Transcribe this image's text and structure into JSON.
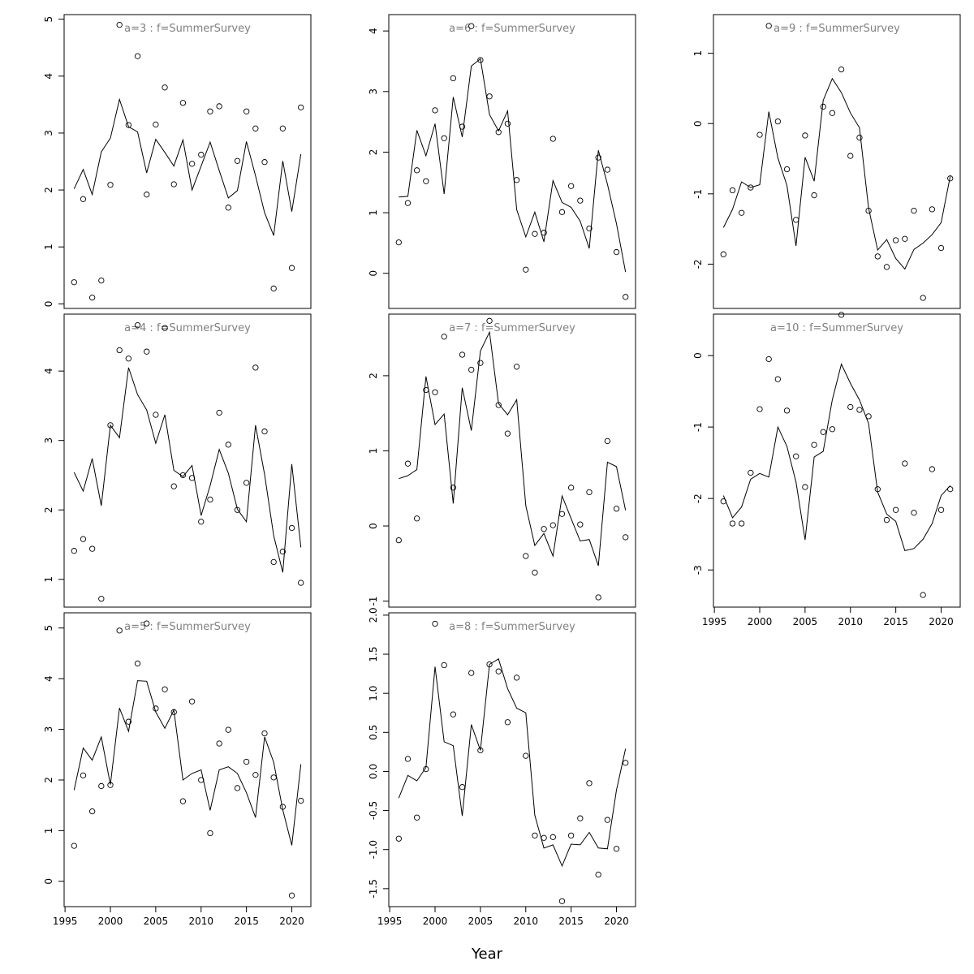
{
  "xlabel": "Year",
  "chart_data": [
    {
      "type": "line+scatter",
      "title": "a=3 : f=SummerSurvey",
      "x": [
        1996,
        1997,
        1998,
        1999,
        2000,
        2001,
        2002,
        2003,
        2004,
        2005,
        2006,
        2007,
        2008,
        2009,
        2010,
        2011,
        2012,
        2013,
        2014,
        2015,
        2016,
        2017,
        2018,
        2019,
        2020,
        2021
      ],
      "ylim": [
        -0.08,
        5.08
      ],
      "yticks": [
        0,
        1,
        2,
        3,
        4,
        5
      ],
      "xticks": [],
      "points": [
        0.38,
        1.84,
        0.11,
        0.41,
        2.09,
        4.9,
        3.14,
        4.35,
        1.92,
        3.15,
        3.8,
        2.1,
        3.53,
        2.46,
        2.62,
        3.38,
        3.47,
        1.69,
        2.51,
        3.38,
        3.08,
        2.49,
        0.27,
        3.08,
        0.63,
        3.45
      ],
      "line": [
        2.02,
        2.36,
        1.92,
        2.67,
        2.91,
        3.59,
        3.11,
        3.02,
        2.3,
        2.89,
        2.66,
        2.42,
        2.88,
        2.0,
        2.42,
        2.84,
        2.34,
        1.86,
        1.99,
        2.85,
        2.25,
        1.6,
        1.2,
        2.51,
        1.62,
        2.63
      ]
    },
    {
      "type": "line+scatter",
      "title": "a=4 : f=SummerSurvey",
      "x": [
        1996,
        1997,
        1998,
        1999,
        2000,
        2001,
        2002,
        2003,
        2004,
        2005,
        2006,
        2007,
        2008,
        2009,
        2010,
        2011,
        2012,
        2013,
        2014,
        2015,
        2016,
        2017,
        2018,
        2019,
        2020,
        2021
      ],
      "ylim": [
        0.6,
        4.82
      ],
      "yticks": [
        1,
        2,
        3,
        4
      ],
      "xticks": [],
      "points": [
        1.41,
        1.58,
        1.44,
        0.72,
        3.22,
        4.3,
        4.18,
        4.66,
        4.28,
        3.37,
        4.62,
        2.34,
        2.5,
        2.46,
        1.83,
        2.15,
        3.4,
        2.94,
        2.0,
        2.39,
        4.05,
        3.13,
        1.25,
        1.4,
        1.74,
        0.95
      ],
      "line": [
        2.54,
        2.27,
        2.74,
        2.06,
        3.22,
        3.04,
        4.05,
        3.66,
        3.44,
        2.96,
        3.37,
        2.57,
        2.48,
        2.64,
        1.92,
        2.35,
        2.87,
        2.53,
        2.01,
        1.83,
        3.22,
        2.51,
        1.63,
        1.1,
        2.66,
        1.46
      ]
    },
    {
      "type": "line+scatter",
      "title": "a=5 : f=SummerSurvey",
      "x": [
        1996,
        1997,
        1998,
        1999,
        2000,
        2001,
        2002,
        2003,
        2004,
        2005,
        2006,
        2007,
        2008,
        2009,
        2010,
        2011,
        2012,
        2013,
        2014,
        2015,
        2016,
        2017,
        2018,
        2019,
        2020,
        2021
      ],
      "ylim": [
        -0.5,
        5.3
      ],
      "yticks": [
        0,
        1,
        2,
        3,
        4,
        5
      ],
      "xticks": [
        1995,
        2000,
        2005,
        2010,
        2015,
        2020
      ],
      "points": [
        0.7,
        2.09,
        1.38,
        1.88,
        1.9,
        4.95,
        3.15,
        4.3,
        5.09,
        3.41,
        3.79,
        3.34,
        1.58,
        3.55,
        2.0,
        0.95,
        2.72,
        2.99,
        1.84,
        2.36,
        2.1,
        2.92,
        2.05,
        1.47,
        -0.28,
        1.59
      ],
      "line": [
        1.8,
        2.63,
        2.39,
        2.85,
        1.91,
        3.42,
        2.96,
        3.96,
        3.95,
        3.34,
        3.02,
        3.38,
        2.0,
        2.13,
        2.2,
        1.4,
        2.2,
        2.26,
        2.13,
        1.75,
        1.26,
        2.85,
        2.35,
        1.41,
        0.71,
        2.31
      ]
    },
    {
      "type": "line+scatter",
      "title": "a=6 : f=SummerSurvey",
      "x": [
        1996,
        1997,
        1998,
        1999,
        2000,
        2001,
        2002,
        2003,
        2004,
        2005,
        2006,
        2007,
        2008,
        2009,
        2010,
        2011,
        2012,
        2013,
        2014,
        2015,
        2016,
        2017,
        2018,
        2019,
        2020,
        2021
      ],
      "ylim": [
        -0.58,
        4.27
      ],
      "yticks": [
        0,
        1,
        2,
        3,
        4
      ],
      "xticks": [],
      "points": [
        0.51,
        1.16,
        1.7,
        1.52,
        2.69,
        2.23,
        3.22,
        2.42,
        4.08,
        3.52,
        2.92,
        2.33,
        2.47,
        1.54,
        0.06,
        0.65,
        0.67,
        2.22,
        1.01,
        1.44,
        1.2,
        0.74,
        1.91,
        1.71,
        0.35,
        -0.39
      ],
      "line": [
        1.26,
        1.27,
        2.36,
        1.94,
        2.47,
        1.31,
        2.91,
        2.25,
        3.42,
        3.54,
        2.62,
        2.35,
        2.68,
        1.05,
        0.6,
        1.01,
        0.52,
        1.53,
        1.17,
        1.09,
        0.86,
        0.41,
        2.03,
        1.47,
        0.82,
        0.02
      ]
    },
    {
      "type": "line+scatter",
      "title": "a=7 : f=SummerSurvey",
      "x": [
        1996,
        1997,
        1998,
        1999,
        2000,
        2001,
        2002,
        2003,
        2004,
        2005,
        2006,
        2007,
        2008,
        2009,
        2010,
        2011,
        2012,
        2013,
        2014,
        2015,
        2016,
        2017,
        2018,
        2019,
        2020,
        2021
      ],
      "ylim": [
        -1.08,
        2.82
      ],
      "yticks": [
        -1,
        0,
        1,
        2
      ],
      "xticks": [],
      "points": [
        -0.19,
        0.83,
        0.1,
        1.81,
        1.78,
        2.52,
        0.51,
        2.28,
        2.08,
        2.17,
        2.73,
        1.61,
        1.23,
        2.12,
        -0.4,
        -0.62,
        -0.04,
        0.01,
        0.16,
        0.51,
        0.02,
        0.45,
        -0.95,
        1.13,
        0.23,
        -0.15
      ],
      "line": [
        0.63,
        0.67,
        0.75,
        1.99,
        1.35,
        1.49,
        0.3,
        1.84,
        1.27,
        2.33,
        2.58,
        1.63,
        1.48,
        1.68,
        0.27,
        -0.26,
        -0.1,
        -0.4,
        0.4,
        0.1,
        -0.2,
        -0.18,
        -0.53,
        0.85,
        0.79,
        0.21
      ]
    },
    {
      "type": "line+scatter",
      "title": "a=8 : f=SummerSurvey",
      "x": [
        1996,
        1997,
        1998,
        1999,
        2000,
        2001,
        2002,
        2003,
        2004,
        2005,
        2006,
        2007,
        2008,
        2009,
        2010,
        2011,
        2012,
        2013,
        2014,
        2015,
        2016,
        2017,
        2018,
        2019,
        2020,
        2021
      ],
      "ylim": [
        -1.73,
        2.03
      ],
      "yticks": [
        -1.5,
        -1.0,
        -0.5,
        0.0,
        0.5,
        1.0,
        1.5,
        2.0
      ],
      "ytick_labels": [
        "-1.5",
        "-1.0",
        "-0.5",
        "0.0",
        "0.5",
        "1.0",
        "1.5",
        "2.0"
      ],
      "xticks": [
        1995,
        2000,
        2005,
        2010,
        2015,
        2020
      ],
      "points": [
        -0.86,
        0.16,
        -0.59,
        0.03,
        1.89,
        1.36,
        0.73,
        -0.2,
        1.26,
        0.27,
        1.37,
        1.28,
        0.63,
        1.2,
        0.2,
        -0.82,
        -0.85,
        -0.84,
        -1.66,
        -0.82,
        -0.6,
        -0.15,
        -1.32,
        -0.62,
        -0.99,
        0.11
      ],
      "line": [
        -0.34,
        -0.05,
        -0.12,
        0.05,
        1.34,
        0.38,
        0.33,
        -0.57,
        0.6,
        0.27,
        1.37,
        1.44,
        1.06,
        0.81,
        0.75,
        -0.56,
        -0.98,
        -0.94,
        -1.21,
        -0.93,
        -0.94,
        -0.78,
        -0.98,
        -0.99,
        -0.24,
        0.29
      ]
    },
    {
      "type": "line+scatter",
      "title": "a=9 : f=SummerSurvey",
      "x": [
        1996,
        1997,
        1998,
        1999,
        2000,
        2001,
        2002,
        2003,
        2004,
        2005,
        2006,
        2007,
        2008,
        2009,
        2010,
        2011,
        2012,
        2013,
        2014,
        2015,
        2016,
        2017,
        2018,
        2019,
        2020,
        2021
      ],
      "ylim": [
        -2.63,
        1.55
      ],
      "yticks": [
        -2,
        -1,
        0,
        1
      ],
      "xticks": [],
      "points": [
        -1.86,
        -0.95,
        -1.27,
        -0.91,
        -0.16,
        1.39,
        0.03,
        -0.65,
        -1.37,
        -0.17,
        -1.02,
        0.24,
        0.15,
        0.77,
        -0.46,
        -0.2,
        -1.24,
        -1.89,
        -2.04,
        -1.66,
        -1.64,
        -1.24,
        -2.48,
        -1.22,
        -1.77,
        -0.78
      ],
      "line": [
        -1.48,
        -1.22,
        -0.83,
        -0.91,
        -0.87,
        0.17,
        -0.49,
        -0.88,
        -1.74,
        -0.48,
        -0.82,
        0.33,
        0.64,
        0.44,
        0.15,
        -0.06,
        -1.2,
        -1.8,
        -1.65,
        -1.92,
        -2.07,
        -1.79,
        -1.7,
        -1.58,
        -1.41,
        -0.75
      ]
    },
    {
      "type": "line+scatter",
      "title": "a=10 : f=SummerSurvey",
      "x": [
        1996,
        1997,
        1998,
        1999,
        2000,
        2001,
        2002,
        2003,
        2004,
        2005,
        2006,
        2007,
        2008,
        2009,
        2010,
        2011,
        2012,
        2013,
        2014,
        2015,
        2016,
        2017,
        2018,
        2019,
        2020,
        2021
      ],
      "ylim": [
        -3.52,
        0.58
      ],
      "yticks": [
        -3,
        -2,
        -1,
        0
      ],
      "xticks": [
        1995,
        2000,
        2005,
        2010,
        2015,
        2020
      ],
      "points": [
        -2.04,
        -2.35,
        -2.35,
        -1.64,
        -0.75,
        -0.05,
        -0.33,
        -0.77,
        -1.41,
        -1.84,
        -1.25,
        -1.07,
        -1.03,
        0.57,
        -0.72,
        -0.76,
        -0.85,
        -1.87,
        -2.3,
        -2.16,
        -1.51,
        -2.2,
        -3.35,
        -1.59,
        -2.16,
        -1.87
      ],
      "line": [
        -1.96,
        -2.27,
        -2.12,
        -1.73,
        -1.65,
        -1.7,
        -1.0,
        -1.27,
        -1.77,
        -2.58,
        -1.42,
        -1.34,
        -0.62,
        -0.12,
        -0.39,
        -0.62,
        -0.95,
        -1.91,
        -2.22,
        -2.32,
        -2.73,
        -2.7,
        -2.57,
        -2.35,
        -1.96,
        -1.82
      ]
    }
  ]
}
